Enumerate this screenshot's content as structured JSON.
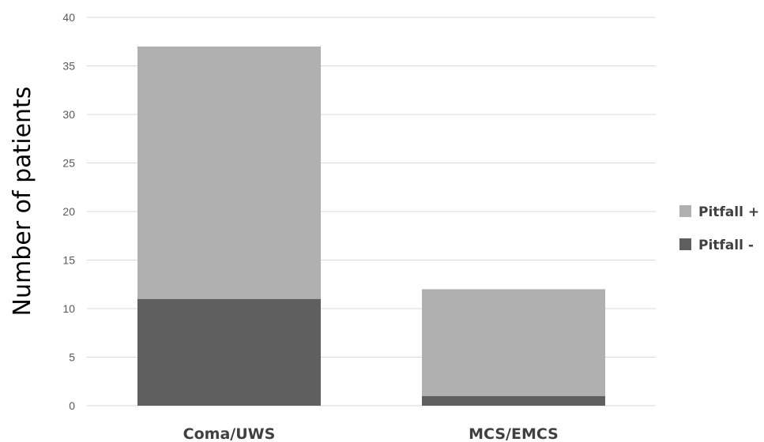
{
  "chart_data": {
    "type": "bar",
    "stacked": true,
    "categories": [
      "Coma/UWS",
      "MCS/EMCS"
    ],
    "series": [
      {
        "name": "Pitfall -",
        "values": [
          11,
          1
        ],
        "color": "#5f5f5f"
      },
      {
        "name": "Pitfall +",
        "values": [
          26,
          11
        ],
        "color": "#b0b0b0"
      }
    ],
    "title": "",
    "xlabel": "",
    "ylabel": "Number of patients",
    "ylim": [
      0,
      40
    ],
    "yticks": [
      0,
      5,
      10,
      15,
      20,
      25,
      30,
      35,
      40
    ],
    "grid": true,
    "legend": {
      "placement": "right",
      "entries": [
        "Pitfall +",
        "Pitfall -"
      ]
    }
  }
}
